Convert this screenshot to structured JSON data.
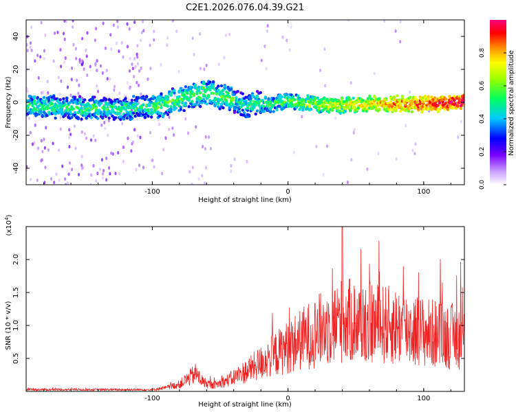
{
  "title": "C2E1.2026.076.04.39.G21",
  "chart_data": [
    {
      "type": "heatmap",
      "name": "spectrogram",
      "xlabel": "Height of straight line (km)",
      "ylabel": "Frequency (Hz)",
      "xlim": [
        -193,
        130
      ],
      "ylim": [
        -50,
        50
      ],
      "xticks": [
        "-100",
        "0",
        "100"
      ],
      "xtick_values": [
        -100,
        0,
        100
      ],
      "yticks": [
        "-40",
        "-20",
        "0",
        "20",
        "40"
      ],
      "ytick_values": [
        -40,
        -20,
        0,
        20,
        40
      ],
      "centerline": [
        {
          "x": -193,
          "y": -2
        },
        {
          "x": -160,
          "y": -3
        },
        {
          "x": -130,
          "y": -4
        },
        {
          "x": -105,
          "y": -3
        },
        {
          "x": -90,
          "y": -1
        },
        {
          "x": -75,
          "y": 3
        },
        {
          "x": -62,
          "y": 6
        },
        {
          "x": -52,
          "y": 4
        },
        {
          "x": -42,
          "y": 2
        },
        {
          "x": -32,
          "y": -2
        },
        {
          "x": -20,
          "y": -1
        },
        {
          "x": 0,
          "y": 0
        },
        {
          "x": 30,
          "y": -2
        },
        {
          "x": 60,
          "y": -1
        },
        {
          "x": 100,
          "y": -1
        },
        {
          "x": 130,
          "y": 0
        }
      ],
      "colorbar": {
        "label": "Normalized spectral amplitude",
        "range": [
          0.0,
          1.0
        ],
        "ticks": [
          "0.0",
          "0.2",
          "0.4",
          "0.6",
          "0.8"
        ],
        "tick_values": [
          0.0,
          0.2,
          0.4,
          0.6,
          0.8
        ]
      }
    },
    {
      "type": "line",
      "name": "snr",
      "xlabel": "Height of straight line (km)",
      "ylabel": "SNR (10 * v/v)",
      "scale_note": "(x10",
      "scale_exp": "4",
      "xlim": [
        -193,
        130
      ],
      "ylim": [
        0,
        2.5
      ],
      "xticks": [
        "-100",
        "0",
        "100"
      ],
      "xtick_values": [
        -100,
        0,
        100
      ],
      "yticks": [
        "0.5",
        "1.0",
        "1.5",
        "2.0"
      ],
      "ytick_values": [
        0.5,
        1.0,
        1.5,
        2.0
      ],
      "color": "#ee2222",
      "envelope": [
        {
          "x": -193,
          "y": 0.03
        },
        {
          "x": -100,
          "y": 0.03
        },
        {
          "x": -90,
          "y": 0.06
        },
        {
          "x": -80,
          "y": 0.12
        },
        {
          "x": -68,
          "y": 0.3
        },
        {
          "x": -62,
          "y": 0.15
        },
        {
          "x": -55,
          "y": 0.1
        },
        {
          "x": -45,
          "y": 0.18
        },
        {
          "x": -30,
          "y": 0.35
        },
        {
          "x": -15,
          "y": 0.55
        },
        {
          "x": 0,
          "y": 0.75
        },
        {
          "x": 20,
          "y": 1.0
        },
        {
          "x": 40,
          "y": 1.2
        },
        {
          "x": 60,
          "y": 1.15
        },
        {
          "x": 80,
          "y": 1.1
        },
        {
          "x": 100,
          "y": 1.0
        },
        {
          "x": 115,
          "y": 0.95
        },
        {
          "x": 130,
          "y": 0.9
        }
      ],
      "peak": {
        "x": 40,
        "y": 2.5
      }
    }
  ]
}
